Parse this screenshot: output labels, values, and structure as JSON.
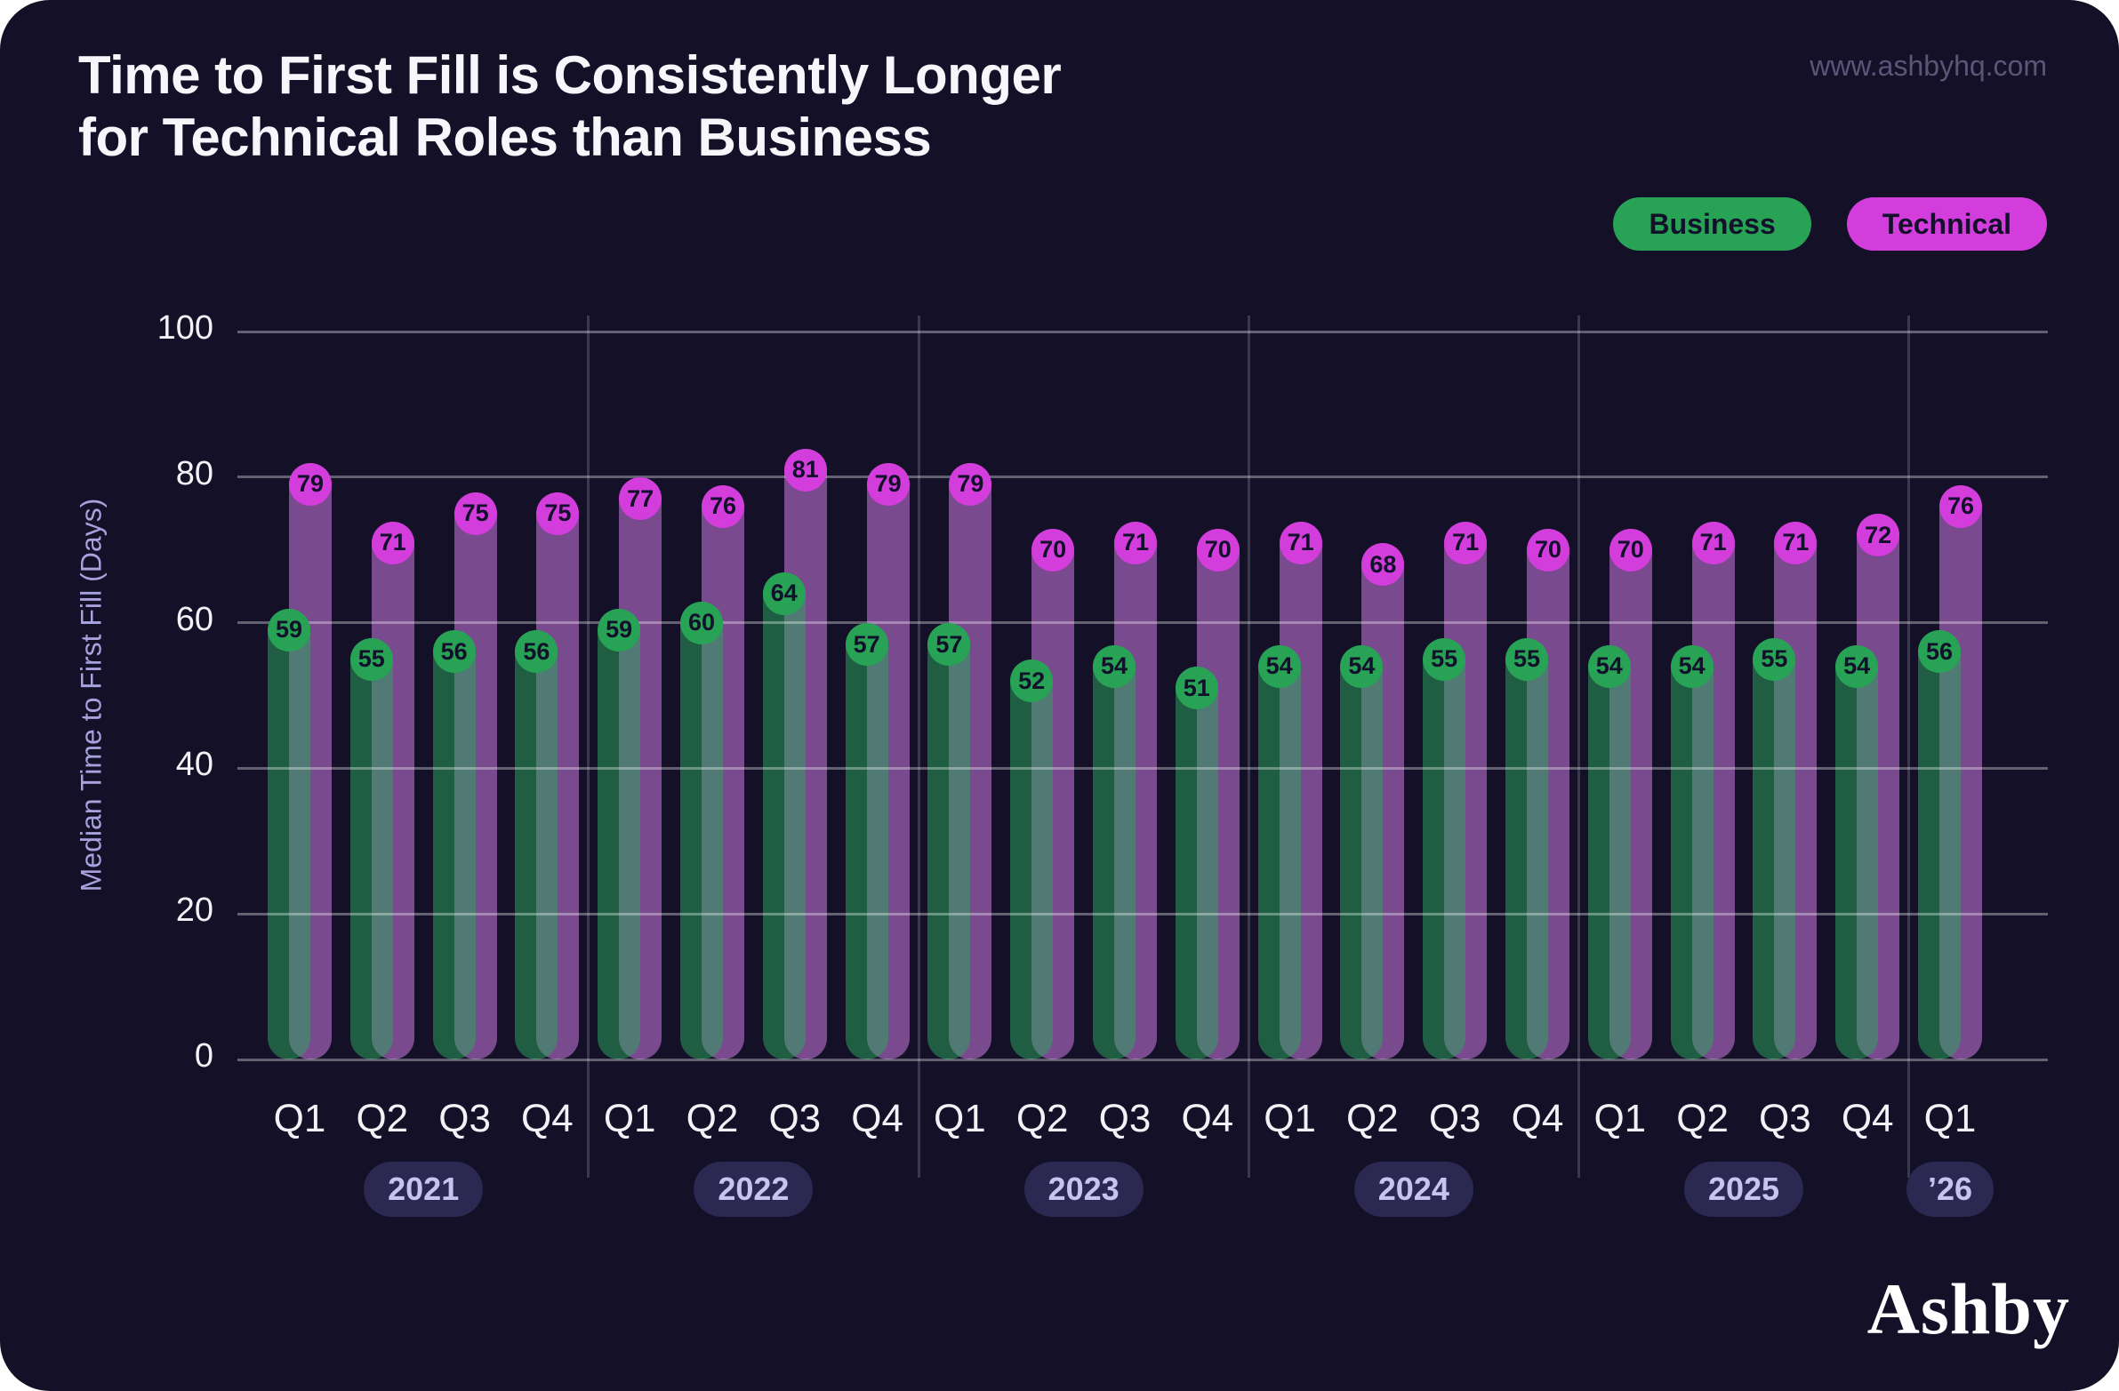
{
  "header": {
    "title_line1": "Time to First Fill is Consistently Longer",
    "title_line2": "for Technical Roles than Business",
    "url": "www.ashbyhq.com"
  },
  "footer": {
    "logo": "Ashby"
  },
  "chart_data": {
    "type": "bar",
    "title": "Time to First Fill is Consistently Longer for Technical Roles than Business",
    "xlabel": "",
    "ylabel": "Median Time to First Fill (Days)",
    "ylim": [
      0,
      100
    ],
    "yticks": [
      0,
      20,
      40,
      60,
      80,
      100
    ],
    "grid": true,
    "legend_position": "top-right",
    "series": [
      {
        "name": "Business",
        "color": "#28A355"
      },
      {
        "name": "Technical",
        "color": "#D33DDB"
      }
    ],
    "years": [
      {
        "label": "2021",
        "quarters": [
          "Q1",
          "Q2",
          "Q3",
          "Q4"
        ],
        "business": [
          59,
          55,
          56,
          56
        ],
        "technical": [
          79,
          71,
          75,
          75
        ]
      },
      {
        "label": "2022",
        "quarters": [
          "Q1",
          "Q2",
          "Q3",
          "Q4"
        ],
        "business": [
          59,
          60,
          64,
          57
        ],
        "technical": [
          77,
          76,
          81,
          79
        ]
      },
      {
        "label": "2023",
        "quarters": [
          "Q1",
          "Q2",
          "Q3",
          "Q4"
        ],
        "business": [
          57,
          52,
          54,
          51
        ],
        "technical": [
          79,
          70,
          71,
          70
        ]
      },
      {
        "label": "2024",
        "quarters": [
          "Q1",
          "Q2",
          "Q3",
          "Q4"
        ],
        "business": [
          54,
          54,
          55,
          55
        ],
        "technical": [
          71,
          68,
          71,
          70
        ]
      },
      {
        "label": "2025",
        "quarters": [
          "Q1",
          "Q2",
          "Q3",
          "Q4"
        ],
        "business": [
          54,
          54,
          55,
          54
        ],
        "technical": [
          70,
          71,
          71,
          72
        ]
      },
      {
        "label": "’26",
        "quarters": [
          "Q1"
        ],
        "business": [
          56
        ],
        "technical": [
          76
        ]
      }
    ]
  }
}
